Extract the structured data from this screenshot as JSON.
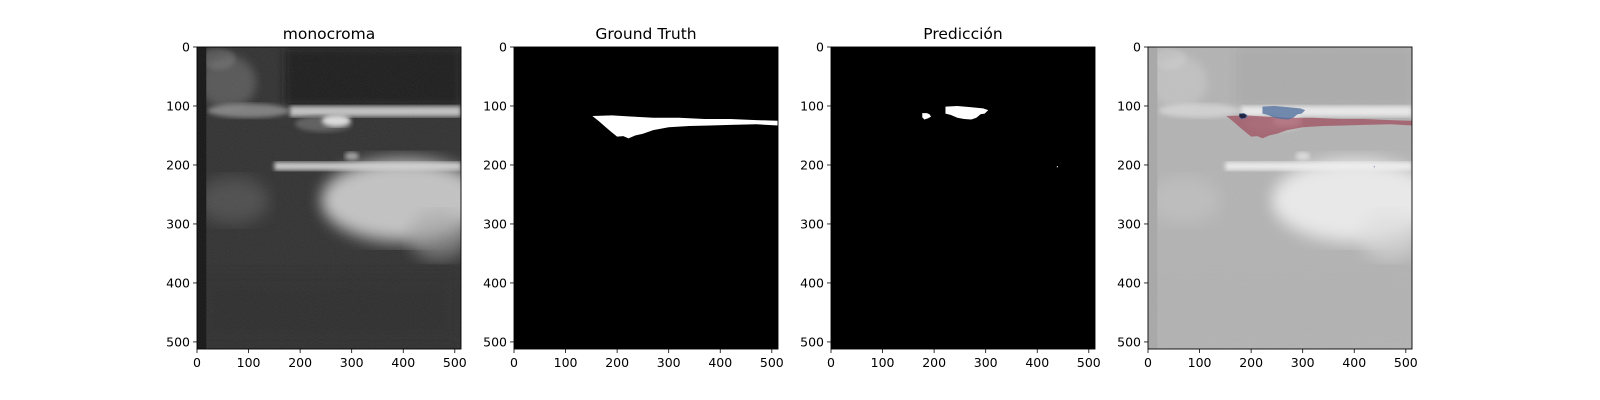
{
  "figure": {
    "panels": [
      {
        "id": "monocroma",
        "title": "monocroma",
        "kind": "ultrasound"
      },
      {
        "id": "ground-truth",
        "title": "Ground Truth",
        "kind": "mask-gt"
      },
      {
        "id": "prediccion",
        "title": "Predicción",
        "kind": "mask-pred"
      },
      {
        "id": "overlay",
        "title": "",
        "kind": "overlay"
      }
    ],
    "x_ticks": [
      "0",
      "100",
      "200",
      "300",
      "400",
      "500"
    ],
    "y_ticks": [
      "0",
      "100",
      "200",
      "300",
      "400",
      "500"
    ],
    "extent": [
      0,
      512
    ],
    "colors": {
      "mask": "#ffffff",
      "background": "#000000",
      "overlay_gt": "#a05060",
      "overlay_pred": "#4a6a9a",
      "overlay_both": "#151530"
    }
  }
}
